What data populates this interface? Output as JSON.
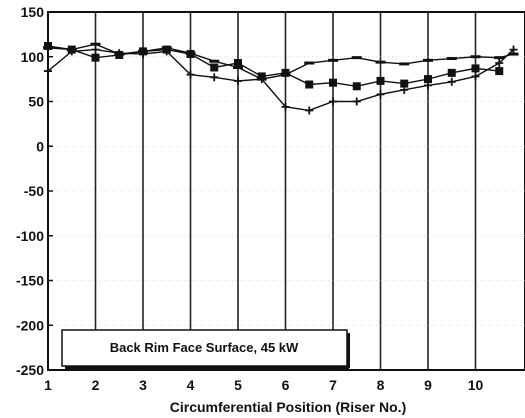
{
  "chart_data": {
    "type": "line",
    "title": "",
    "xlabel": "Circumferential Position (Riser No.)",
    "ylabel": "",
    "xlim": [
      1,
      10.8
    ],
    "ylim": [
      -250,
      150
    ],
    "x_ticks": [
      1,
      2,
      3,
      4,
      5,
      6,
      7,
      8,
      9,
      10
    ],
    "x_tick_labels": [
      "1",
      "2",
      "3",
      "4",
      "5",
      "6",
      "7",
      "8",
      "9",
      "10"
    ],
    "y_ticks": [
      150,
      100,
      50,
      0,
      -50,
      -100,
      -150,
      -200,
      -250
    ],
    "y_tick_labels": [
      "150",
      "100",
      "50",
      "0",
      "-50",
      "-100",
      "-150",
      "-200",
      "-250"
    ],
    "grid": "vertical lines at each riser position",
    "legend_box": "Back Rim Face Surface, 45 kW",
    "legend_placement": "bottom-left",
    "series": [
      {
        "marker": "square",
        "x": [
          1,
          1.5,
          2,
          2.5,
          3,
          3.5,
          4,
          4.5,
          5,
          5.5,
          6,
          6.5,
          7,
          7.5,
          8,
          8.5,
          9,
          9.5,
          10,
          10.5
        ],
        "y": [
          112,
          108,
          99,
          102,
          106,
          108,
          103,
          88,
          93,
          78,
          82,
          69,
          71,
          67,
          73,
          70,
          75,
          82,
          87,
          84
        ]
      },
      {
        "marker": "plus",
        "x": [
          1,
          1.5,
          2,
          2.5,
          3,
          3.5,
          4,
          4.5,
          5,
          5.5,
          6,
          6.5,
          7,
          7.5,
          8,
          8.5,
          9,
          9.5,
          10,
          10.5,
          10.8
        ],
        "y": [
          84,
          106,
          108,
          104,
          103,
          106,
          80,
          77,
          73,
          75,
          44,
          40,
          50,
          50,
          58,
          63,
          68,
          72,
          78,
          93,
          108
        ]
      },
      {
        "marker": "dash",
        "x": [
          1,
          1.5,
          2,
          2.5,
          3,
          3.5,
          4,
          4.5,
          5,
          5.5,
          6,
          6.5,
          7,
          7.5,
          8,
          8.5,
          9,
          9.5,
          10,
          10.5,
          10.8
        ],
        "y": [
          110,
          108,
          114,
          103,
          106,
          110,
          104,
          95,
          88,
          75,
          80,
          93,
          96,
          99,
          94,
          92,
          96,
          98,
          100,
          99,
          103
        ]
      }
    ]
  }
}
